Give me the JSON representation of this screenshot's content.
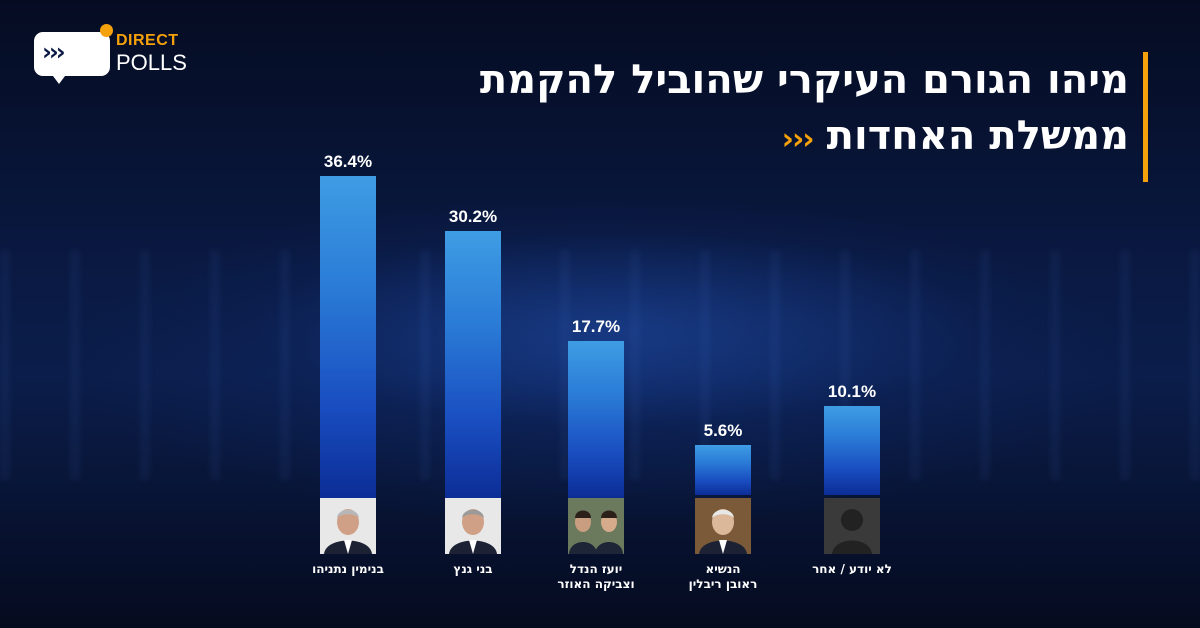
{
  "brand": {
    "arrows": "›››",
    "line1": "DIRECT",
    "line2": "POLLS",
    "accent_color": "#f5a10b"
  },
  "title": {
    "line1": "מיהו הגורם העיקרי שהוביל להקמת",
    "line2": "ממשלת האחדות",
    "arrows": "›››"
  },
  "chart_data": {
    "type": "bar",
    "title": "מיהו הגורם העיקרי שהוביל להקמת ממשלת האחדות",
    "categories": [
      "בנימין נתניהו",
      "בני גנץ",
      "יועז הנדל\nוצביקה האוזר",
      "הנשיא\nראובן ריבלין",
      "לא יודע / אחר"
    ],
    "values": [
      36.4,
      30.2,
      17.7,
      5.6,
      10.1
    ],
    "value_labels": [
      "36.4%",
      "30.2%",
      "17.7%",
      "5.6%",
      "10.1%"
    ],
    "photos": [
      "portrait-netanyahu-icon",
      "portrait-gantz-icon",
      "portrait-hendel-hauser-icon",
      "portrait-rivlin-icon",
      "unknown-person-icon"
    ],
    "unit": "%",
    "ylim": [
      0,
      36.4
    ],
    "bar_color_top": "#3f9de4",
    "bar_color_bottom": "#0c2d96",
    "grid": false,
    "legend": "none"
  }
}
